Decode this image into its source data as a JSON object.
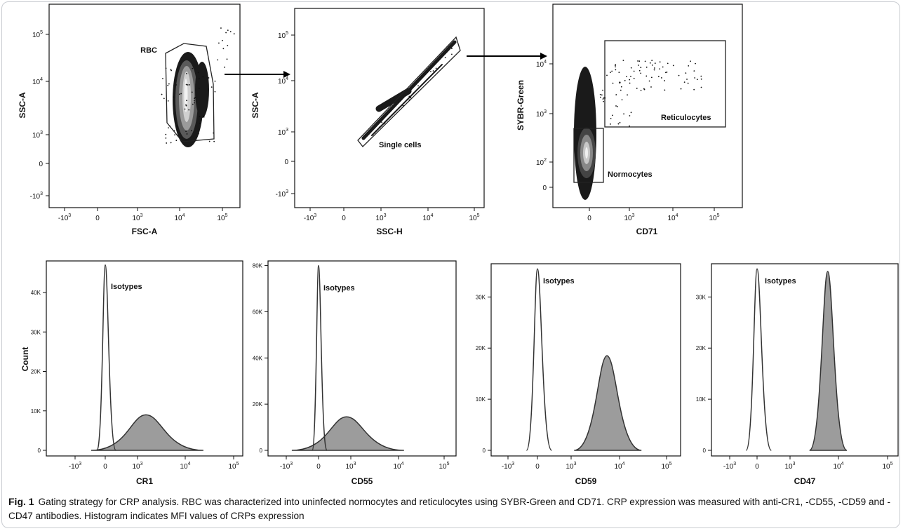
{
  "caption": {
    "label": "Fig. 1",
    "text": "Gating strategy for CRP analysis. RBC was characterized into uninfected normocytes and reticulocytes using SYBR-Green and CD71. CRP expression was measured with anti-CR1, -CD55, -CD59 and -CD47 antibodies. Histogram indicates MFI values of CRPs expression"
  },
  "chart_data": [
    {
      "type": "scatter",
      "name": "dot-plot-fsc-ssc",
      "xlabel": "FSC-A",
      "ylabel": "SSC-A",
      "x_ticks": [
        "-10^3",
        "0",
        "10^3",
        "10^4",
        "10^5"
      ],
      "y_ticks": [
        "-10^3",
        "0",
        "10^3",
        "10^4",
        "10^5"
      ],
      "gates": [
        {
          "label": "RBC"
        }
      ]
    },
    {
      "type": "scatter",
      "name": "dot-plot-ssch-ssca",
      "xlabel": "SSC-H",
      "ylabel": "SSC-A",
      "x_ticks": [
        "-10^3",
        "0",
        "10^3",
        "10^4",
        "10^5"
      ],
      "y_ticks": [
        "-10^3",
        "0",
        "10^3",
        "10^4",
        "10^5"
      ],
      "gates": [
        {
          "label": "Single cells"
        }
      ]
    },
    {
      "type": "scatter",
      "name": "dot-plot-cd71-sybr",
      "xlabel": "CD71",
      "ylabel": "SYBR-Green",
      "x_ticks": [
        "0",
        "10^3",
        "10^4",
        "10^5"
      ],
      "y_ticks": [
        "0",
        "10^2",
        "10^3",
        "10^4"
      ],
      "gates": [
        {
          "label": "Reticulocytes"
        },
        {
          "label": "Normocytes"
        }
      ]
    },
    {
      "type": "area",
      "name": "histogram-cr1",
      "xlabel": "CR1",
      "ylabel": "Count",
      "x_ticks": [
        "-10^3",
        "0",
        "10^3",
        "10^4",
        "10^5"
      ],
      "y_ticks": [
        "0",
        "10K",
        "20K",
        "30K",
        "40K"
      ],
      "ylim": [
        0,
        48000
      ],
      "annotation": "Isotypes",
      "isotype_peak": {
        "x": 0,
        "y": 47000
      },
      "stained_peak": {
        "x": 1500,
        "y": 9000
      }
    },
    {
      "type": "area",
      "name": "histogram-cd55",
      "xlabel": "CD55",
      "ylabel": "",
      "x_ticks": [
        "-10^3",
        "0",
        "10^3",
        "10^4",
        "10^5"
      ],
      "y_ticks": [
        "0",
        "20K",
        "40K",
        "60K",
        "80K"
      ],
      "ylim": [
        0,
        82000
      ],
      "annotation": "Isotypes",
      "isotype_peak": {
        "x": 0,
        "y": 80000
      },
      "stained_peak": {
        "x": 400,
        "y": 14500
      }
    },
    {
      "type": "area",
      "name": "histogram-cd59",
      "xlabel": "CD59",
      "ylabel": "",
      "x_ticks": [
        "-10^3",
        "0",
        "10^3",
        "10^4",
        "10^5"
      ],
      "y_ticks": [
        "0",
        "10K",
        "20K",
        "30K"
      ],
      "ylim": [
        0,
        36500
      ],
      "annotation": "Isotypes",
      "isotype_peak": {
        "x": 0,
        "y": 35500
      },
      "stained_peak": {
        "x": 5500,
        "y": 18500
      }
    },
    {
      "type": "area",
      "name": "histogram-cd47",
      "xlabel": "CD47",
      "ylabel": "",
      "x_ticks": [
        "-10^3",
        "0",
        "10^3",
        "10^4",
        "10^5"
      ],
      "y_ticks": [
        "0",
        "10K",
        "20K",
        "30K"
      ],
      "ylim": [
        0,
        36500
      ],
      "annotation": "Isotypes",
      "isotype_peak": {
        "x": 0,
        "y": 35500
      },
      "stained_peak": {
        "x": 6000,
        "y": 35000
      }
    }
  ]
}
